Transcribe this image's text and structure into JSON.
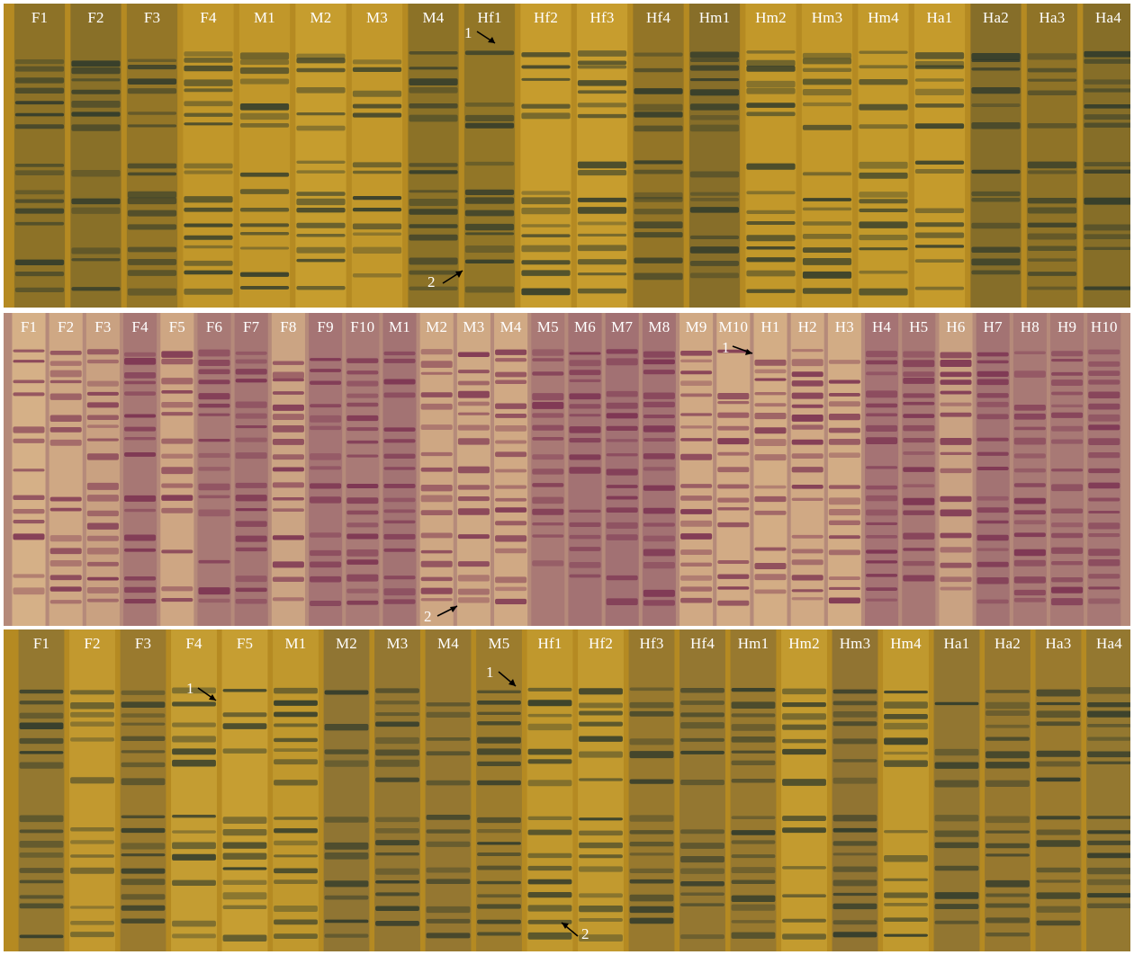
{
  "panels": [
    {
      "id": "panel-1",
      "lanes": [
        "F1",
        "F2",
        "F3",
        "F4",
        "M1",
        "M2",
        "M3",
        "M4",
        "Hf1",
        "Hf2",
        "Hf3",
        "Hf4",
        "Hm1",
        "Hm2",
        "Hm3",
        "Hm4",
        "Ha1",
        "Ha2",
        "Ha3",
        "Ha4"
      ],
      "markers": [
        "1",
        "2"
      ]
    },
    {
      "id": "panel-2",
      "lanes": [
        "F1",
        "F2",
        "F3",
        "F4",
        "F5",
        "F6",
        "F7",
        "F8",
        "F9",
        "F10",
        "M1",
        "M2",
        "M3",
        "M4",
        "M5",
        "M6",
        "M7",
        "M8",
        "M9",
        "M10",
        "H1",
        "H2",
        "H3",
        "H4",
        "H5",
        "H6",
        "H7",
        "H8",
        "H9",
        "H10"
      ],
      "markers": [
        "1",
        "2"
      ]
    },
    {
      "id": "panel-3",
      "lanes": [
        "F1",
        "F2",
        "F3",
        "F4",
        "F5",
        "M1",
        "M2",
        "M3",
        "M4",
        "M5",
        "Hf1",
        "Hf2",
        "Hf3",
        "Hf4",
        "Hm1",
        "Hm2",
        "Hm3",
        "Hm4",
        "Ha1",
        "Ha2",
        "Ha3",
        "Ha4"
      ],
      "markers": [
        "1",
        "2"
      ]
    }
  ],
  "colors": {
    "gold_bg": "#b58a22",
    "gold_band": "#2f3a2c",
    "purple_bg": "#b58a7a",
    "purple_band": "#7a3050",
    "label": "#ffffff"
  }
}
